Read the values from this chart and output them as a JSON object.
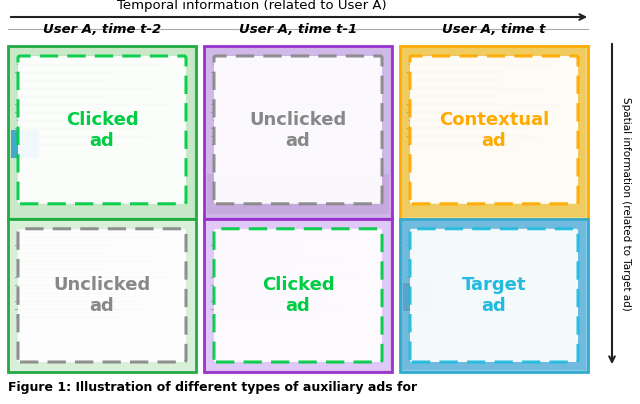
{
  "title_temporal": "Temporal information (related to User A)",
  "title_spatial": "Spatial information (related to Target ad)",
  "caption": "Figure 1: Illustration of different types of auxiliary ads for",
  "column_titles": [
    "User A, time t-2",
    "User A, time t-1",
    "User A, time t"
  ],
  "col1_box1_label": "Clicked\nad",
  "col1_box2_label": "Unclicked\nad",
  "col2_box1_label": "Unclicked\nad",
  "col2_box2_label": "Clicked\nad",
  "col3_box1_label": "Contextual\nad",
  "col3_box2_label": "Target\nad",
  "clicked_color": "#00cc44",
  "unclicked_color": "#888888",
  "contextual_color": "#ffaa00",
  "target_color": "#22bbdd",
  "col1_border_color": "#22aa44",
  "col2_border_color": "#9933cc",
  "col3_top_border_color": "#ffaa00",
  "col3_bot_border_color": "#33aacc",
  "bg_col1_top": "#b8e8b8",
  "bg_col1_bot": "#d8efd8",
  "bg_col2_top": "#c8a8e8",
  "bg_col2_bot": "#d8b8f0",
  "bg_col3_top": "#f5d880",
  "bg_col3_bot": "#88ccee",
  "arrow_color": "#222222",
  "text_line_color": "#999999",
  "fig_width": 6.4,
  "fig_height": 4.04
}
